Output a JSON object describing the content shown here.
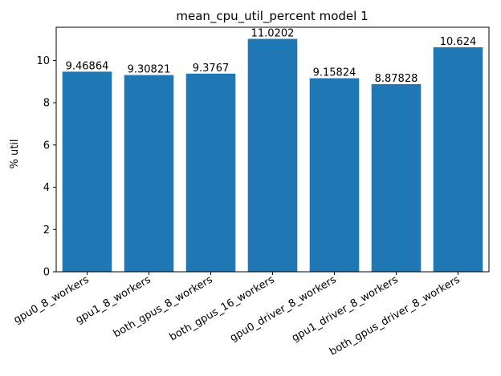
{
  "chart_data": {
    "type": "bar",
    "title": "mean_cpu_util_percent model 1",
    "xlabel": "",
    "ylabel": "% util",
    "categories": [
      "gpu0_8_workers",
      "gpu1_8_workers",
      "both_gpus_8_workers",
      "both_gpus_16_workers",
      "gpu0_driver_8_workers",
      "gpu1_driver_8_workers",
      "both_gpus_driver_8_workers"
    ],
    "values": [
      9.46864,
      9.30821,
      9.3767,
      11.0202,
      9.15824,
      8.87828,
      10.624
    ],
    "value_labels": [
      "9.46864",
      "9.30821",
      "9.3767",
      "11.0202",
      "9.15824",
      "8.87828",
      "10.624"
    ],
    "ylim": [
      0,
      11.57
    ],
    "yticks": [
      0,
      2,
      4,
      6,
      8,
      10
    ],
    "ytick_labels": [
      "0",
      "2",
      "4",
      "6",
      "8",
      "10"
    ],
    "grid": false,
    "legend": "none",
    "bar_color": "#1f77b4"
  }
}
